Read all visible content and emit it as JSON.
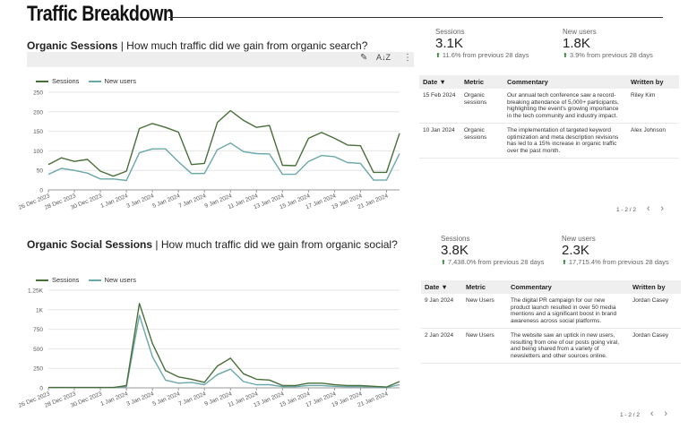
{
  "page": {
    "title": "Traffic Breakdown"
  },
  "organic": {
    "heading_bold": "Organic Sessions",
    "heading_rest": " | How much traffic did we gain from organic search?",
    "legend": {
      "sessions": "Sessions",
      "new_users": "New users"
    },
    "kpis": {
      "sessions_label": "Sessions",
      "sessions_value": "3.1K",
      "sessions_change": "11.6% from previous 28 days",
      "new_users_label": "New users",
      "new_users_value": "1.8K",
      "new_users_change": "3.9% from previous 28 days"
    },
    "table": {
      "headers": {
        "date": "Date ▼",
        "metric": "Metric",
        "commentary": "Commentary",
        "author": "Written by"
      },
      "rows": [
        {
          "date": "15 Feb 2024",
          "metric": "Organic sessions",
          "commentary": "Our annual tech conference saw a record-breaking attendance of 5,000+ participants, highlighting the event's growing importance in the tech community and industry impact.",
          "author": "Riley Kim"
        },
        {
          "date": "10 Jan 2024",
          "metric": "Organic sessions",
          "commentary": "The implementation of targeted keyword optimization and meta description revisions has led to a 15% increase in organic traffic over the past month.",
          "author": "Alex Johnson"
        }
      ],
      "pagination": "1 - 2 / 2"
    }
  },
  "social": {
    "heading_bold": "Organic Social Sessions",
    "heading_rest": " | How much traffic did we gain from organic social?",
    "legend": {
      "sessions": "Sessions",
      "new_users": "New users"
    },
    "kpis": {
      "sessions_label": "Sessions",
      "sessions_value": "3.8K",
      "sessions_change": "7,438.0% from previous 28 days",
      "new_users_label": "New users",
      "new_users_value": "2.3K",
      "new_users_change": "17,715.4% from previous 28 days"
    },
    "table": {
      "headers": {
        "date": "Date ▼",
        "metric": "Metric",
        "commentary": "Commentary",
        "author": "Written by"
      },
      "rows": [
        {
          "date": "9 Jan 2024",
          "metric": "New Users",
          "commentary": "The digital PR campaign for our new product launch resulted in over 50 media mentions and a significant boost in brand awareness across social platforms.",
          "author": "Jordan Casey"
        },
        {
          "date": "2 Jan 2024",
          "metric": "New Users",
          "commentary": "The website saw an uptick in new users, resulting from one of our posts going viral, and being shared from a variety of newsletters and other sources online.",
          "author": "Jordan Casey"
        }
      ],
      "pagination": "1 - 2 / 2"
    }
  },
  "colors": {
    "sessions": "#4a6e3a",
    "new_users": "#6aa7a8",
    "axis": "#999999",
    "grid": "#e6e6e6"
  },
  "chart_data": [
    {
      "type": "line",
      "title": "Organic Sessions",
      "x": [
        "26 Dec 2023",
        "27 Dec 2023",
        "28 Dec 2023",
        "29 Dec 2023",
        "30 Dec 2023",
        "31 Dec 2023",
        "1 Jan 2024",
        "2 Jan 2024",
        "3 Jan 2024",
        "4 Jan 2024",
        "5 Jan 2024",
        "6 Jan 2024",
        "7 Jan 2024",
        "8 Jan 2024",
        "9 Jan 2024",
        "10 Jan 2024",
        "11 Jan 2024",
        "12 Jan 2024",
        "13 Jan 2024",
        "14 Jan 2024",
        "15 Jan 2024",
        "16 Jan 2024",
        "17 Jan 2024",
        "18 Jan 2024",
        "19 Jan 2024",
        "20 Jan 2024",
        "21 Jan 2024",
        "22 Jan 2024"
      ],
      "tick_labels": [
        "26 Dec 2023",
        "28 Dec 2023",
        "30 Dec 2023",
        "1 Jan 2024",
        "3 Jan 2024",
        "5 Jan 2024",
        "7 Jan 2024",
        "9 Jan 2024",
        "11 Jan 2024",
        "13 Jan 2024",
        "15 Jan 2024",
        "17 Jan 2024",
        "19 Jan 2024",
        "21 Jan 2024"
      ],
      "yticks": [
        0,
        50,
        100,
        150,
        200,
        250
      ],
      "ytick_labels": [
        "0",
        "50",
        "100",
        "150",
        "200",
        "250"
      ],
      "ylim": [
        0,
        250
      ],
      "series": [
        {
          "name": "Sessions",
          "values": [
            65,
            82,
            73,
            78,
            48,
            35,
            48,
            157,
            170,
            160,
            148,
            65,
            68,
            173,
            203,
            178,
            160,
            165,
            63,
            62,
            132,
            147,
            132,
            115,
            113,
            45,
            45,
            145
          ]
        },
        {
          "name": "New users",
          "values": [
            40,
            55,
            50,
            43,
            28,
            28,
            24,
            95,
            105,
            105,
            72,
            42,
            42,
            103,
            120,
            98,
            93,
            92,
            40,
            40,
            73,
            88,
            85,
            70,
            68,
            25,
            25,
            93
          ]
        }
      ]
    },
    {
      "type": "line",
      "title": "Organic Social Sessions",
      "x": [
        "26 Dec 2023",
        "27 Dec 2023",
        "28 Dec 2023",
        "29 Dec 2023",
        "30 Dec 2023",
        "31 Dec 2023",
        "1 Jan 2024",
        "2 Jan 2024",
        "3 Jan 2024",
        "4 Jan 2024",
        "5 Jan 2024",
        "6 Jan 2024",
        "7 Jan 2024",
        "8 Jan 2024",
        "9 Jan 2024",
        "10 Jan 2024",
        "11 Jan 2024",
        "12 Jan 2024",
        "13 Jan 2024",
        "14 Jan 2024",
        "15 Jan 2024",
        "16 Jan 2024",
        "17 Jan 2024",
        "18 Jan 2024",
        "19 Jan 2024",
        "20 Jan 2024",
        "21 Jan 2024",
        "22 Jan 2024"
      ],
      "tick_labels": [
        "26 Dec 2023",
        "28 Dec 2023",
        "30 Dec 2023",
        "1 Jan 2024",
        "3 Jan 2024",
        "5 Jan 2024",
        "7 Jan 2024",
        "9 Jan 2024",
        "11 Jan 2024",
        "13 Jan 2024",
        "15 Jan 2024",
        "17 Jan 2024",
        "19 Jan 2024",
        "21 Jan 2024"
      ],
      "yticks": [
        0,
        250,
        500,
        750,
        1000,
        1250
      ],
      "ytick_labels": [
        "0",
        "250",
        "500",
        "750",
        "1K",
        "1.25K"
      ],
      "ylim": [
        0,
        1250
      ],
      "series": [
        {
          "name": "Sessions",
          "values": [
            5,
            5,
            5,
            5,
            5,
            5,
            30,
            1080,
            570,
            220,
            140,
            110,
            70,
            280,
            380,
            180,
            110,
            100,
            30,
            30,
            60,
            60,
            40,
            30,
            30,
            20,
            10,
            80
          ]
        },
        {
          "name": "New users",
          "values": [
            3,
            3,
            3,
            3,
            3,
            3,
            15,
            930,
            400,
            100,
            60,
            70,
            40,
            170,
            240,
            80,
            40,
            40,
            15,
            15,
            30,
            30,
            20,
            15,
            15,
            10,
            5,
            40
          ]
        }
      ]
    }
  ]
}
